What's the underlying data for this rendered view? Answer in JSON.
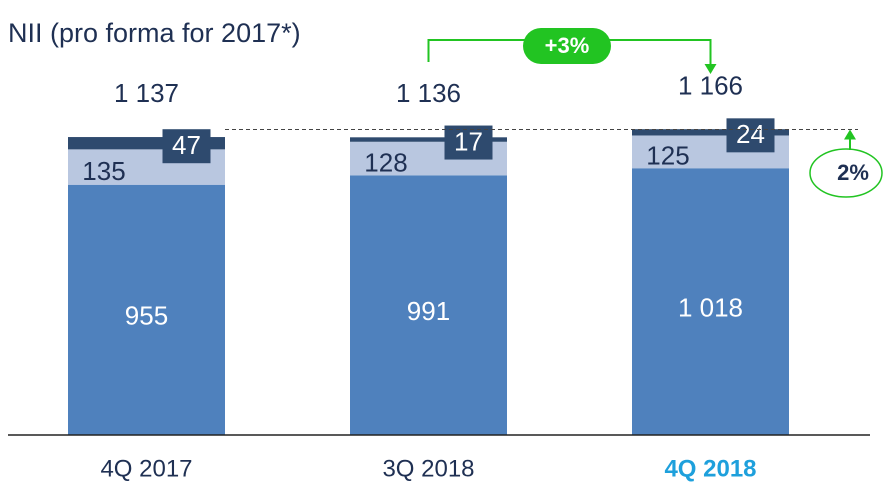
{
  "chart_data": {
    "type": "stacked_bar",
    "title": "NII (pro forma for 2017*)",
    "categories": [
      "4Q 2017",
      "3Q 2018",
      "4Q 2018"
    ],
    "series": [
      {
        "color": "#4f81bd",
        "values": [
          955,
          991,
          1018
        ],
        "value_labels": [
          "955",
          "991",
          "1 018"
        ]
      },
      {
        "color": "#b9c7e0",
        "values": [
          135,
          128,
          125
        ]
      },
      {
        "color": "#2e4a6e",
        "values": [
          47,
          17,
          24
        ]
      }
    ],
    "totals": [
      1137,
      1136,
      1166
    ],
    "total_labels": [
      "1 137",
      "1 136",
      "1 166"
    ],
    "ylim": [
      0,
      1660
    ],
    "highlight_category": 2,
    "highlight_color": "#1ea0dc",
    "annotations": [
      "+3%",
      "2%"
    ],
    "annotation_color": "#22c422"
  }
}
